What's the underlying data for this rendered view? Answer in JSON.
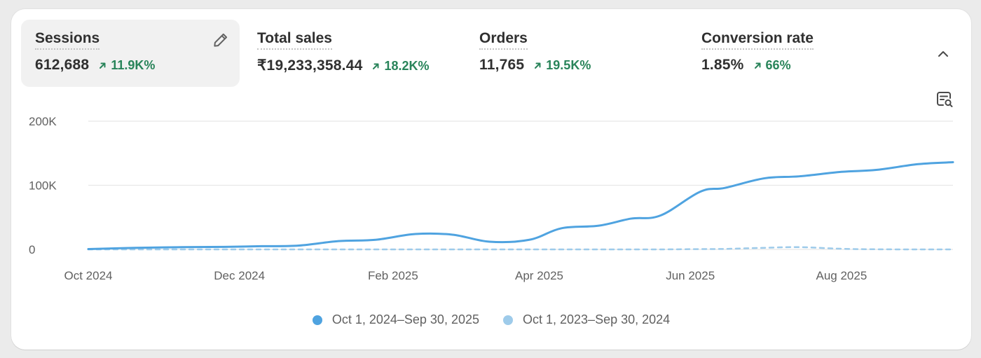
{
  "metrics": [
    {
      "label": "Sessions",
      "value": "612,688",
      "change": "11.9K%"
    },
    {
      "label": "Total sales",
      "value": "₹19,233,358.44",
      "change": "18.2K%"
    },
    {
      "label": "Orders",
      "value": "11,765",
      "change": "19.5K%"
    },
    {
      "label": "Conversion rate",
      "value": "1.85%",
      "change": "66%"
    }
  ],
  "icons": {
    "edit": "pencil-icon",
    "collapse": "chevron-up-icon",
    "explore": "explore-report-icon",
    "change": "arrow-up-right-icon"
  },
  "colors": {
    "current_series": "#4fa3e0",
    "previous_series": "#9ecbea",
    "positive_change": "#29845a",
    "selected_metric_bg": "#f1f1f1"
  },
  "legend": {
    "current": "Oct 1, 2024–Sep 30, 2025",
    "previous": "Oct 1, 2023–Sep 30, 2024"
  },
  "chart_data": {
    "type": "line",
    "title": "",
    "xlabel": "",
    "ylabel": "",
    "ylim": [
      0,
      200000
    ],
    "y_ticks": [
      {
        "value": 0,
        "label": "0"
      },
      {
        "value": 100000,
        "label": "100K"
      },
      {
        "value": 200000,
        "label": "200K"
      }
    ],
    "x_ticks": [
      "Oct 2024",
      "Dec 2024",
      "Feb 2025",
      "Apr 2025",
      "Jun 2025",
      "Aug 2025"
    ],
    "x": [
      "2024-10-01",
      "2024-10-20",
      "2024-11-08",
      "2024-11-25",
      "2024-12-10",
      "2024-12-25",
      "2025-01-10",
      "2025-01-25",
      "2025-02-10",
      "2025-02-25",
      "2025-03-12",
      "2025-03-28",
      "2025-04-10",
      "2025-04-25",
      "2025-05-08",
      "2025-05-20",
      "2025-06-05",
      "2025-06-15",
      "2025-07-01",
      "2025-07-15",
      "2025-08-01",
      "2025-08-15",
      "2025-09-01",
      "2025-09-15"
    ],
    "grid": true,
    "legend_position": "bottom",
    "series": [
      {
        "name": "Oct 1, 2024–Sep 30, 2025",
        "style": "solid",
        "values": [
          500,
          2500,
          3500,
          4000,
          5000,
          6000,
          13000,
          15000,
          24000,
          23000,
          12000,
          15000,
          33000,
          37000,
          48000,
          53000,
          90000,
          96000,
          111000,
          114000,
          121000,
          124000,
          133000,
          136000
        ]
      },
      {
        "name": "Oct 1, 2023–Sep 30, 2024",
        "style": "dashed",
        "values": [
          0,
          0,
          0,
          0,
          0,
          0,
          0,
          0,
          0,
          0,
          0,
          0,
          0,
          0,
          0,
          0,
          500,
          800,
          2500,
          3500,
          1000,
          200,
          0,
          0
        ]
      }
    ]
  }
}
